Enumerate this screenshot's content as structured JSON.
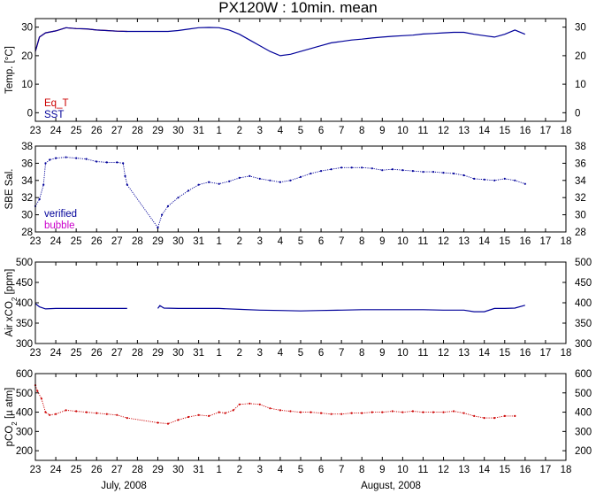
{
  "figure": {
    "title": "PX120W : 10min. mean",
    "month_labels": [
      "July, 2008",
      "August, 2008"
    ]
  },
  "chart_data": [
    {
      "id": "temp",
      "type": "line",
      "ylabel": "Temp. [°C]",
      "ylabel_parts": [],
      "ylim": [
        -3,
        33
      ],
      "yticks": [
        0,
        10,
        20,
        30
      ],
      "xlim": [
        23,
        49
      ],
      "x_tick_labels": [
        "23",
        "24",
        "25",
        "26",
        "27",
        "28",
        "29",
        "30",
        "31",
        "1",
        "2",
        "3",
        "4",
        "5",
        "6",
        "7",
        "8",
        "9",
        "10",
        "11",
        "12",
        "13",
        "14",
        "15",
        "16",
        "17",
        "18"
      ],
      "legend": "bottom-left",
      "series": [
        {
          "name": "Eq_T",
          "color": "#cc0000",
          "x": [
            23.0,
            23.2,
            23.5,
            24.0,
            24.5,
            25.0,
            25.5,
            26.0,
            26.5,
            27.0,
            27.5
          ],
          "y": [
            21.5,
            26.5,
            28.0,
            28.7,
            29.8,
            29.5,
            29.4,
            29.0,
            28.8,
            28.6,
            28.5
          ]
        },
        {
          "name": "SST",
          "color": "#000099",
          "x": [
            23.0,
            23.2,
            23.5,
            24.0,
            24.5,
            25.0,
            25.5,
            26.0,
            26.5,
            27.0,
            27.5,
            29.0,
            29.5,
            30.0,
            30.5,
            31.0,
            31.5,
            32.0,
            32.5,
            33.0,
            33.5,
            34.0,
            34.5,
            35.0,
            35.5,
            36.0,
            36.5,
            37.0,
            37.5,
            38.0,
            38.5,
            39.0,
            39.5,
            40.0,
            40.5,
            41.0,
            41.5,
            42.0,
            42.5,
            43.0,
            43.5,
            44.0,
            44.5,
            45.0,
            45.5,
            46.0,
            46.5,
            47.0
          ],
          "y": [
            21.5,
            26.5,
            28.0,
            28.7,
            29.8,
            29.5,
            29.4,
            29.0,
            28.8,
            28.6,
            28.5,
            28.5,
            28.5,
            28.8,
            29.3,
            29.8,
            29.9,
            29.8,
            29.0,
            27.5,
            25.5,
            23.5,
            21.5,
            20.0,
            20.5,
            21.5,
            22.5,
            23.5,
            24.5,
            25.0,
            25.5,
            25.8,
            26.2,
            26.5,
            26.8,
            27.0,
            27.2,
            27.6,
            27.8,
            28.0,
            28.2,
            28.2,
            27.5,
            27.0,
            26.5,
            27.5,
            29.0,
            27.5
          ]
        }
      ]
    },
    {
      "id": "salinity",
      "type": "scatter",
      "ylabel": "SBE Sal.",
      "ylabel_parts": [],
      "ylim": [
        28,
        38
      ],
      "yticks": [
        28,
        30,
        32,
        34,
        36,
        38
      ],
      "xlim": [
        23,
        49
      ],
      "x_tick_labels": [
        "23",
        "24",
        "25",
        "26",
        "27",
        "28",
        "29",
        "30",
        "31",
        "1",
        "2",
        "3",
        "4",
        "5",
        "6",
        "7",
        "8",
        "9",
        "10",
        "11",
        "12",
        "13",
        "14",
        "15",
        "16",
        "17",
        "18"
      ],
      "legend": "bottom-left",
      "series": [
        {
          "name": "verified",
          "color": "#000099",
          "x": [
            23.0,
            23.2,
            23.4,
            23.5,
            23.7,
            24.0,
            24.5,
            25.0,
            25.5,
            26.0,
            26.5,
            27.0,
            27.3,
            27.4,
            27.5,
            29.0,
            29.2,
            29.5,
            30.0,
            30.5,
            31.0,
            31.5,
            32.0,
            32.5,
            33.0,
            33.5,
            34.0,
            34.5,
            35.0,
            35.5,
            36.0,
            36.5,
            37.0,
            37.5,
            38.0,
            38.5,
            39.0,
            39.5,
            40.0,
            40.5,
            41.0,
            41.5,
            42.0,
            42.5,
            43.0,
            43.5,
            44.0,
            44.5,
            45.0,
            45.5,
            46.0,
            46.5,
            47.0
          ],
          "y": [
            31.0,
            31.8,
            33.5,
            36.0,
            36.4,
            36.6,
            36.7,
            36.6,
            36.5,
            36.2,
            36.1,
            36.1,
            36.0,
            34.5,
            33.5,
            28.5,
            30.0,
            31.0,
            32.0,
            32.8,
            33.5,
            33.8,
            33.6,
            33.9,
            34.3,
            34.5,
            34.2,
            34.0,
            33.8,
            34.0,
            34.4,
            34.8,
            35.1,
            35.3,
            35.5,
            35.5,
            35.5,
            35.4,
            35.2,
            35.3,
            35.2,
            35.1,
            35.0,
            35.0,
            34.9,
            34.8,
            34.6,
            34.2,
            34.1,
            34.0,
            34.2,
            34.0,
            33.6
          ]
        },
        {
          "name": "bubble",
          "color": "#cc00cc",
          "x": [],
          "y": []
        }
      ]
    },
    {
      "id": "airco2",
      "type": "line",
      "ylabel": "",
      "ylabel_parts": [
        "Air xCO",
        "2",
        " [ppm]"
      ],
      "ylim": [
        300,
        500
      ],
      "yticks": [
        300,
        350,
        400,
        450,
        500
      ],
      "xlim": [
        23,
        49
      ],
      "x_tick_labels": [
        "23",
        "24",
        "25",
        "26",
        "27",
        "28",
        "29",
        "30",
        "31",
        "1",
        "2",
        "3",
        "4",
        "5",
        "6",
        "7",
        "8",
        "9",
        "10",
        "11",
        "12",
        "13",
        "14",
        "15",
        "16",
        "17",
        "18"
      ],
      "legend": "none",
      "series": [
        {
          "name": "",
          "color": "#000099",
          "x": [
            23.0,
            23.2,
            23.5,
            24.0,
            25.0,
            26.0,
            27.0,
            27.5
          ],
          "y": [
            398,
            390,
            385,
            386,
            386,
            386,
            386,
            386
          ]
        },
        {
          "name": "",
          "color": "#000099",
          "x": [
            29.0,
            29.1,
            29.3,
            30.0,
            31.0,
            32.0,
            33.0,
            34.0,
            35.0,
            36.0,
            37.0,
            38.0,
            39.0,
            40.0,
            41.0,
            42.0,
            43.0,
            44.0,
            44.5,
            45.0,
            45.5,
            46.0,
            46.5,
            47.0
          ],
          "y": [
            386,
            393,
            387,
            386,
            386,
            386,
            384,
            382,
            381,
            380,
            381,
            382,
            383,
            383,
            383,
            383,
            382,
            382,
            378,
            378,
            386,
            386,
            387,
            394
          ]
        }
      ]
    },
    {
      "id": "pco2",
      "type": "scatter",
      "ylabel": "",
      "ylabel_parts": [
        "pCO",
        "2",
        " [µ atm]"
      ],
      "ylim": [
        150,
        600
      ],
      "yticks": [
        200,
        300,
        400,
        500,
        600
      ],
      "xlim": [
        23,
        49
      ],
      "x_tick_labels": [
        "23",
        "24",
        "25",
        "26",
        "27",
        "28",
        "29",
        "30",
        "31",
        "1",
        "2",
        "3",
        "4",
        "5",
        "6",
        "7",
        "8",
        "9",
        "10",
        "11",
        "12",
        "13",
        "14",
        "15",
        "16",
        "17",
        "18"
      ],
      "legend": "none",
      "series": [
        {
          "name": "",
          "color": "#cc0000",
          "x": [
            23.0,
            23.1,
            23.3,
            23.5,
            23.7,
            24.0,
            24.5,
            25.0,
            25.5,
            26.0,
            26.5,
            27.0,
            27.5,
            29.0,
            29.5,
            30.0,
            30.5,
            31.0,
            31.5,
            32.0,
            32.3,
            32.7,
            33.0,
            33.5,
            34.0,
            34.5,
            35.0,
            35.5,
            36.0,
            36.5,
            37.0,
            37.5,
            38.0,
            38.5,
            39.0,
            39.5,
            40.0,
            40.5,
            41.0,
            41.5,
            42.0,
            42.5,
            43.0,
            43.5,
            44.0,
            44.5,
            45.0,
            45.5,
            46.0,
            46.5
          ],
          "y": [
            540,
            510,
            470,
            400,
            385,
            390,
            410,
            405,
            400,
            395,
            390,
            385,
            370,
            345,
            340,
            360,
            375,
            385,
            380,
            400,
            395,
            410,
            440,
            445,
            440,
            420,
            410,
            405,
            400,
            400,
            395,
            390,
            390,
            395,
            395,
            400,
            400,
            405,
            400,
            405,
            400,
            400,
            400,
            405,
            395,
            380,
            370,
            370,
            380,
            380
          ]
        }
      ]
    }
  ]
}
